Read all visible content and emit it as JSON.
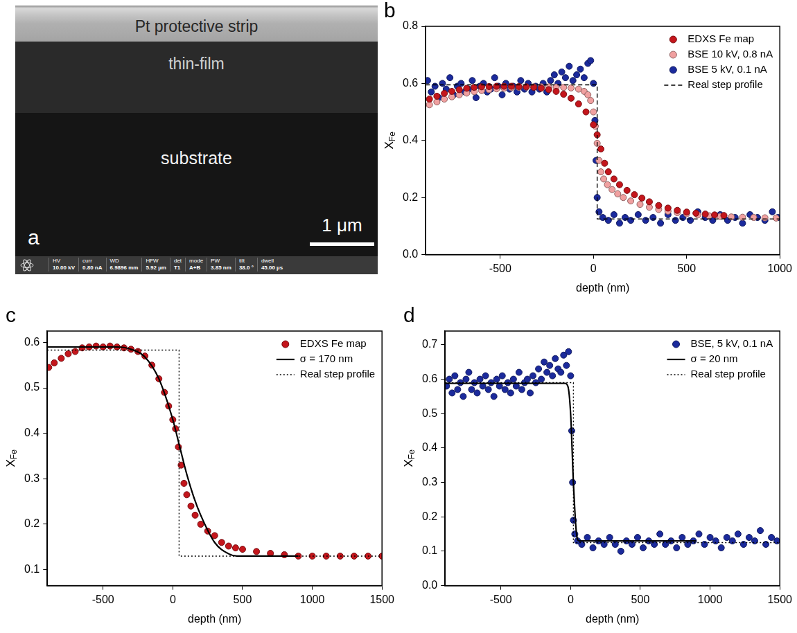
{
  "image_panel": {
    "panel": "a",
    "layers": [
      "Pt protective strip",
      "thin-film",
      "substrate"
    ],
    "scale_bar": "1 μm",
    "info_bar": [
      {
        "label": "HV",
        "value": "10.00 kV"
      },
      {
        "label": "curr",
        "value": "0.80 nA"
      },
      {
        "label": "WD",
        "value": "6.9896 mm"
      },
      {
        "label": "HFW",
        "value": "5.92 µm"
      },
      {
        "label": "det",
        "value": "T1"
      },
      {
        "label": "mode",
        "value": "A+B"
      },
      {
        "label": "PW",
        "value": "3.85 nm"
      },
      {
        "label": "tilt",
        "value": "38.0 °"
      },
      {
        "label": "dwell",
        "value": "45.00 µs"
      }
    ]
  },
  "chart_data": [
    {
      "type": "scatter",
      "panel": "b",
      "x_label": "depth (nm)",
      "y_label": {
        "text": "X",
        "subscript": "Fe"
      },
      "xlim": [
        -900,
        1000
      ],
      "xticks": [
        -500,
        0,
        500,
        1000
      ],
      "ylim": [
        0,
        0.8
      ],
      "yticks": [
        {
          "value": 0,
          "label": "0.0"
        },
        0.2,
        0.4,
        0.6,
        0.8
      ],
      "grid": false,
      "legend": "upper right",
      "series": [
        {
          "name": "EDXS Fe map",
          "color": "#c4161c",
          "marker": "circle",
          "x": [
            -880,
            -840,
            -800,
            -760,
            -720,
            -680,
            -640,
            -600,
            -560,
            -520,
            -480,
            -440,
            -400,
            -360,
            -320,
            -280,
            -240,
            -200,
            -160,
            -120,
            -80,
            -40,
            0,
            20,
            40,
            60,
            80,
            110,
            140,
            180,
            220,
            260,
            300,
            350,
            400,
            450,
            500,
            550,
            600,
            650,
            700
          ],
          "values": [
            0.545,
            0.555,
            0.565,
            0.572,
            0.578,
            0.583,
            0.586,
            0.588,
            0.589,
            0.59,
            0.59,
            0.59,
            0.589,
            0.588,
            0.586,
            0.583,
            0.578,
            0.572,
            0.562,
            0.548,
            0.528,
            0.5,
            0.455,
            0.42,
            0.37,
            0.32,
            0.29,
            0.265,
            0.245,
            0.225,
            0.21,
            0.198,
            0.185,
            0.172,
            0.163,
            0.155,
            0.149,
            0.145,
            0.142,
            0.139,
            0.137
          ]
        },
        {
          "name": "BSE 10 kV, 0.8 nA",
          "color": "#f0a0a0",
          "marker": "circle",
          "x": [
            -880,
            -840,
            -800,
            -760,
            -720,
            -680,
            -640,
            -600,
            -560,
            -520,
            -480,
            -440,
            -400,
            -360,
            -320,
            -280,
            -240,
            -200,
            -160,
            -120,
            -80,
            -50,
            -30,
            -15,
            0,
            10,
            20,
            30,
            40,
            55,
            75,
            100,
            130,
            160,
            200,
            250,
            300,
            350,
            400,
            450,
            500,
            560,
            620,
            680,
            740,
            800,
            860,
            920,
            980
          ],
          "values": [
            0.525,
            0.535,
            0.545,
            0.553,
            0.56,
            0.566,
            0.571,
            0.575,
            0.578,
            0.581,
            0.583,
            0.585,
            0.586,
            0.587,
            0.588,
            0.588,
            0.588,
            0.587,
            0.586,
            0.584,
            0.58,
            0.572,
            0.56,
            0.54,
            0.5,
            0.45,
            0.39,
            0.33,
            0.29,
            0.265,
            0.245,
            0.228,
            0.213,
            0.2,
            0.188,
            0.176,
            0.166,
            0.158,
            0.152,
            0.147,
            0.143,
            0.139,
            0.136,
            0.134,
            0.132,
            0.131,
            0.13,
            0.129,
            0.128
          ]
        },
        {
          "name": "BSE 5 kV, 0.1 nA",
          "color": "#1b2a9c",
          "marker": "circle",
          "x": [
            -890,
            -870,
            -850,
            -830,
            -810,
            -790,
            -770,
            -750,
            -730,
            -710,
            -690,
            -670,
            -650,
            -630,
            -610,
            -590,
            -570,
            -550,
            -530,
            -510,
            -490,
            -470,
            -450,
            -430,
            -410,
            -390,
            -370,
            -350,
            -330,
            -310,
            -290,
            -270,
            -250,
            -230,
            -210,
            -190,
            -170,
            -150,
            -130,
            -110,
            -90,
            -70,
            -50,
            -30,
            -15,
            0,
            8,
            14,
            20,
            30,
            50,
            80,
            110,
            140,
            170,
            200,
            240,
            280,
            320,
            360,
            400,
            440,
            480,
            520,
            560,
            600,
            640,
            680,
            720,
            760,
            800,
            840,
            880,
            920,
            960,
            990
          ],
          "values": [
            0.61,
            0.57,
            0.59,
            0.55,
            0.6,
            0.58,
            0.62,
            0.56,
            0.59,
            0.6,
            0.57,
            0.58,
            0.61,
            0.55,
            0.59,
            0.6,
            0.57,
            0.58,
            0.62,
            0.59,
            0.56,
            0.6,
            0.58,
            0.59,
            0.57,
            0.61,
            0.58,
            0.6,
            0.57,
            0.59,
            0.58,
            0.6,
            0.57,
            0.61,
            0.63,
            0.6,
            0.64,
            0.62,
            0.66,
            0.61,
            0.63,
            0.65,
            0.62,
            0.67,
            0.68,
            0.6,
            0.47,
            0.33,
            0.2,
            0.15,
            0.13,
            0.12,
            0.14,
            0.11,
            0.13,
            0.12,
            0.14,
            0.12,
            0.13,
            0.11,
            0.14,
            0.12,
            0.13,
            0.12,
            0.15,
            0.13,
            0.12,
            0.14,
            0.12,
            0.13,
            0.11,
            0.14,
            0.13,
            0.12,
            0.15,
            0.13
          ]
        },
        {
          "name": "Real step profile",
          "type": "line",
          "color": "#000000",
          "line_style": "dashed",
          "x": [
            -900,
            20,
            20,
            1000
          ],
          "values": [
            0.595,
            0.595,
            0.125,
            0.125
          ]
        }
      ]
    },
    {
      "type": "scatter",
      "panel": "c",
      "x_label": "depth (nm)",
      "y_label": {
        "text": "X",
        "subscript": "Fe"
      },
      "xlim": [
        -900,
        1500
      ],
      "xticks": [
        -500,
        0,
        500,
        1000,
        1500
      ],
      "ylim": [
        0.065,
        0.625
      ],
      "yticks": [
        0.1,
        0.2,
        0.3,
        0.4,
        0.5,
        0.6
      ],
      "grid": false,
      "legend": "upper right",
      "series": [
        {
          "name": "EDXS Fe map",
          "color": "#c4161c",
          "marker": "circle",
          "x": [
            -890,
            -850,
            -800,
            -750,
            -700,
            -650,
            -600,
            -550,
            -500,
            -450,
            -400,
            -350,
            -300,
            -250,
            -200,
            -150,
            -100,
            -60,
            -30,
            0,
            20,
            40,
            60,
            80,
            100,
            130,
            160,
            200,
            250,
            300,
            350,
            400,
            450,
            500,
            600,
            700,
            800,
            900,
            1000,
            1100,
            1200,
            1300,
            1400,
            1500
          ],
          "values": [
            0.545,
            0.555,
            0.565,
            0.575,
            0.58,
            0.588,
            0.59,
            0.592,
            0.59,
            0.592,
            0.59,
            0.588,
            0.585,
            0.58,
            0.57,
            0.55,
            0.52,
            0.49,
            0.46,
            0.43,
            0.41,
            0.37,
            0.33,
            0.29,
            0.265,
            0.24,
            0.22,
            0.2,
            0.185,
            0.175,
            0.16,
            0.152,
            0.148,
            0.145,
            0.14,
            0.136,
            0.133,
            0.13,
            0.13,
            0.13,
            0.13,
            0.13,
            0.13,
            0.13
          ]
        },
        {
          "name": "σ = 170 nm",
          "type": "line",
          "color": "#000000",
          "line_style": "solid",
          "x": [
            -900,
            -400,
            -300,
            -200,
            -100,
            0,
            50,
            100,
            150,
            200,
            300,
            400,
            460,
            900
          ],
          "values": [
            0.59,
            0.59,
            0.585,
            0.568,
            0.52,
            0.43,
            0.37,
            0.31,
            0.26,
            0.22,
            0.16,
            0.135,
            0.13,
            0.13
          ]
        },
        {
          "name": "Real step profile",
          "type": "line",
          "color": "#000000",
          "line_style": "dotted",
          "x": [
            -900,
            45,
            45,
            1500
          ],
          "values": [
            0.583,
            0.583,
            0.13,
            0.13
          ]
        }
      ]
    },
    {
      "type": "scatter",
      "panel": "d",
      "x_label": "depth (nm)",
      "y_label": {
        "text": "X",
        "subscript": "Fe"
      },
      "xlim": [
        -900,
        1500
      ],
      "xticks": [
        -500,
        0,
        500,
        1000,
        1500
      ],
      "ylim": [
        0,
        0.74
      ],
      "yticks": [
        {
          "value": 0,
          "label": "0.0"
        },
        0.1,
        0.2,
        0.3,
        0.4,
        0.5,
        0.6,
        0.7
      ],
      "grid": false,
      "legend": "upper right",
      "series": [
        {
          "name": "BSE, 5 kV, 0.1 nA",
          "color": "#1b2a9c",
          "marker": "circle",
          "x": [
            -890,
            -870,
            -850,
            -830,
            -810,
            -790,
            -770,
            -750,
            -730,
            -710,
            -690,
            -670,
            -650,
            -630,
            -610,
            -590,
            -570,
            -550,
            -530,
            -510,
            -490,
            -470,
            -450,
            -430,
            -410,
            -390,
            -370,
            -350,
            -330,
            -310,
            -290,
            -270,
            -250,
            -230,
            -210,
            -190,
            -170,
            -150,
            -130,
            -110,
            -90,
            -70,
            -50,
            -30,
            -15,
            0,
            8,
            14,
            20,
            30,
            50,
            80,
            120,
            160,
            200,
            240,
            280,
            320,
            360,
            400,
            440,
            480,
            520,
            560,
            600,
            640,
            680,
            720,
            760,
            800,
            840,
            880,
            920,
            960,
            1000,
            1040,
            1080,
            1120,
            1160,
            1200,
            1240,
            1280,
            1320,
            1360,
            1400,
            1440,
            1480
          ],
          "values": [
            0.58,
            0.6,
            0.56,
            0.61,
            0.57,
            0.59,
            0.55,
            0.6,
            0.62,
            0.57,
            0.59,
            0.56,
            0.6,
            0.58,
            0.61,
            0.57,
            0.59,
            0.55,
            0.6,
            0.58,
            0.61,
            0.57,
            0.59,
            0.56,
            0.6,
            0.58,
            0.62,
            0.57,
            0.59,
            0.6,
            0.56,
            0.61,
            0.59,
            0.63,
            0.6,
            0.65,
            0.62,
            0.64,
            0.61,
            0.66,
            0.63,
            0.62,
            0.67,
            0.64,
            0.68,
            0.61,
            0.45,
            0.3,
            0.19,
            0.15,
            0.13,
            0.12,
            0.14,
            0.11,
            0.13,
            0.12,
            0.14,
            0.12,
            0.1,
            0.13,
            0.12,
            0.14,
            0.11,
            0.13,
            0.12,
            0.15,
            0.12,
            0.13,
            0.11,
            0.14,
            0.12,
            0.13,
            0.15,
            0.12,
            0.14,
            0.13,
            0.11,
            0.14,
            0.13,
            0.15,
            0.12,
            0.14,
            0.13,
            0.16,
            0.12,
            0.14,
            0.13
          ]
        },
        {
          "name": "σ = 20 nm",
          "type": "line",
          "color": "#000000",
          "line_style": "solid",
          "x": [
            -900,
            -40,
            -20,
            0,
            20,
            40,
            60,
            900
          ],
          "values": [
            0.588,
            0.588,
            0.58,
            0.5,
            0.3,
            0.16,
            0.13,
            0.13
          ]
        },
        {
          "name": "Real step profile",
          "type": "line",
          "color": "#000000",
          "line_style": "dotted",
          "x": [
            -900,
            20,
            20,
            1500
          ],
          "values": [
            0.59,
            0.59,
            0.125,
            0.125
          ]
        }
      ]
    }
  ]
}
